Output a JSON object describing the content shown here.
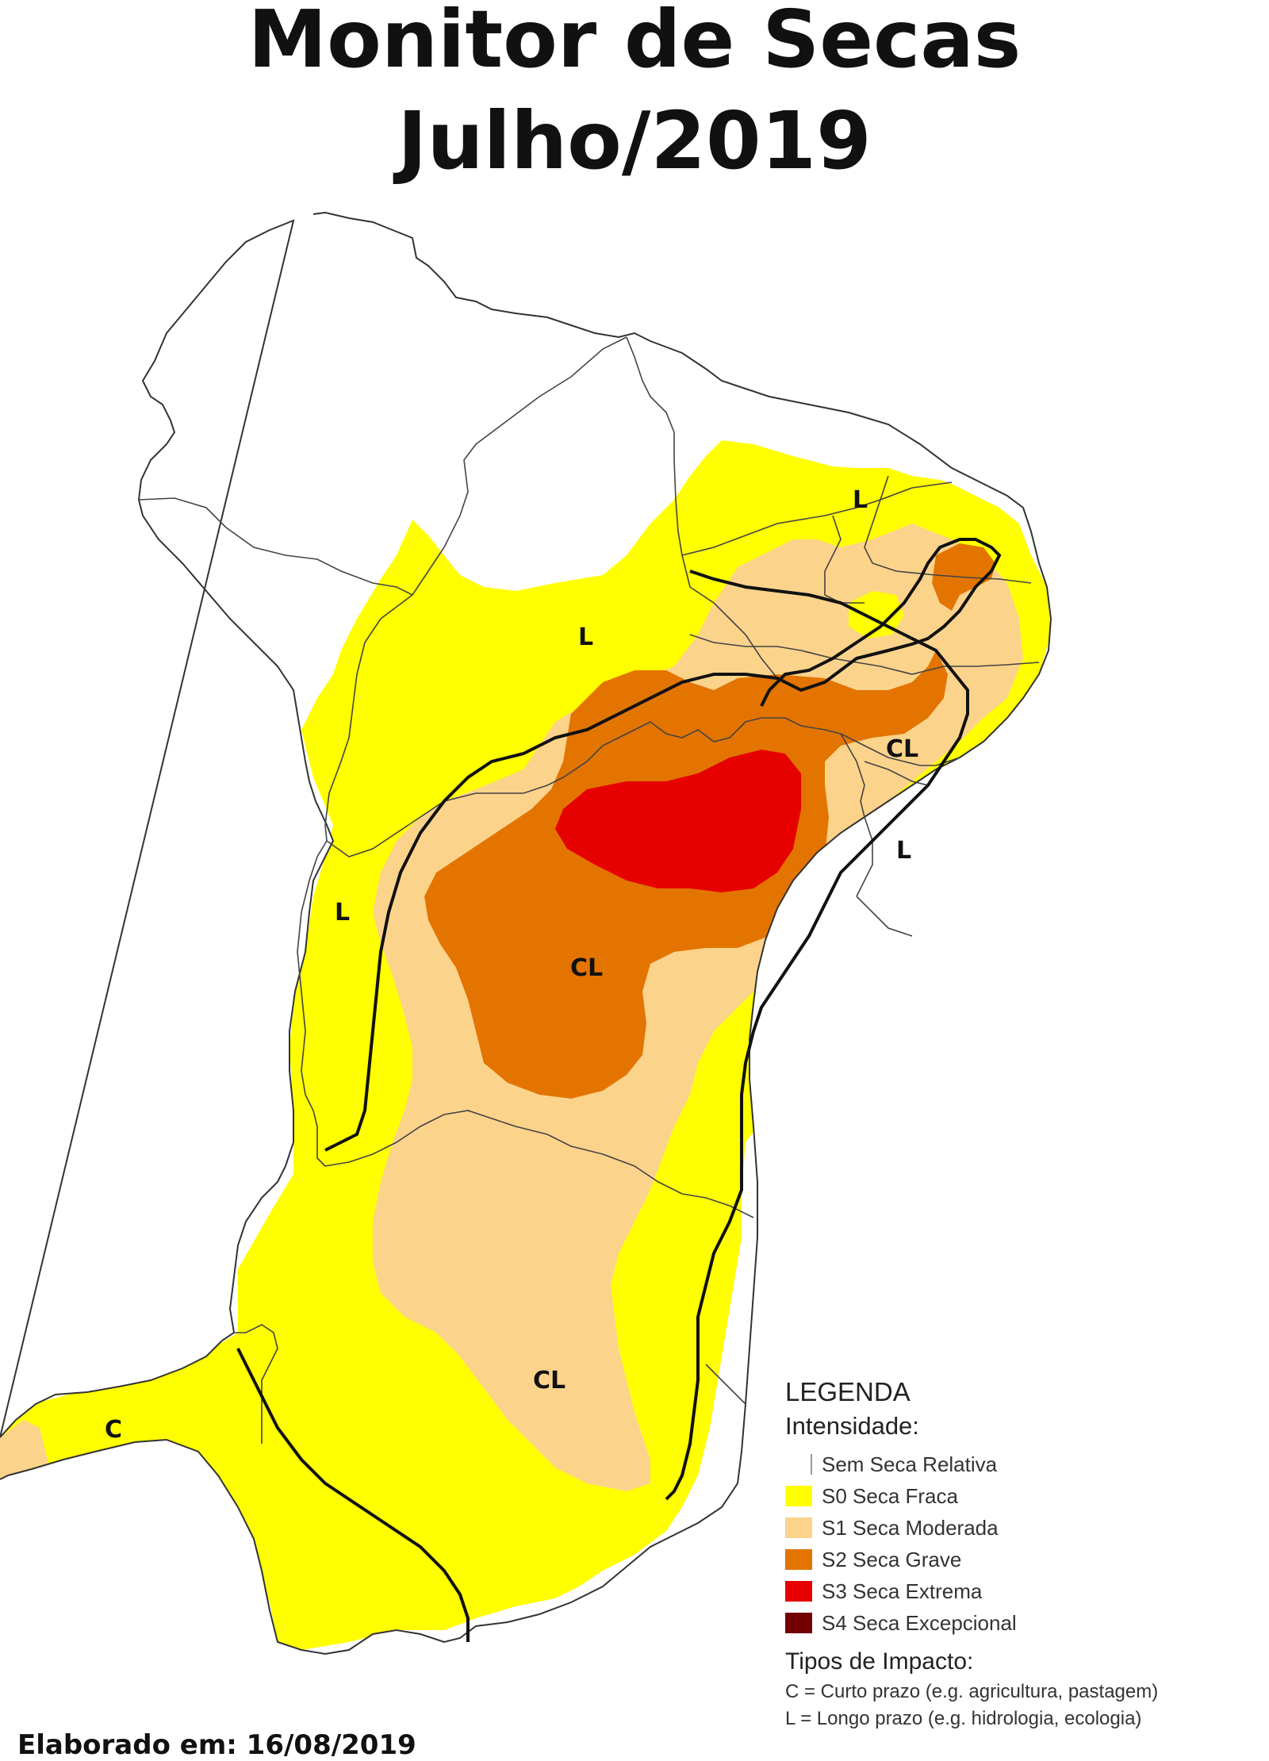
{
  "header": {
    "line1": "Monitor de Secas",
    "line2": "Julho/2019"
  },
  "map_labels": {
    "l_north": "L",
    "l_central": "L",
    "cl_east": "CL",
    "l_east": "L",
    "l_west": "L",
    "cl_center": "CL",
    "cl_south": "CL",
    "c_southwest": "C"
  },
  "legend": {
    "title": "LEGENDA",
    "subtitle": "Intensidade:",
    "items": [
      {
        "label": "Sem Seca Relativa",
        "color": "#ffffff"
      },
      {
        "label": "S0 Seca Fraca",
        "color": "#ffff00"
      },
      {
        "label": "S1 Seca Moderada",
        "color": "#fcd38b"
      },
      {
        "label": "S2 Seca Grave",
        "color": "#e37400"
      },
      {
        "label": "S3 Seca Extrema",
        "color": "#e60000"
      },
      {
        "label": "S4 Seca Excepcional",
        "color": "#730000"
      }
    ],
    "impact_title": "Tipos de Impacto:",
    "impact_c": "C = Curto prazo (e.g. agricultura, pastagem)",
    "impact_l": "L = Longo prazo (e.g. hidrologia, ecologia)"
  },
  "footer": {
    "credit": "Elaborado em: 16/08/2019"
  }
}
